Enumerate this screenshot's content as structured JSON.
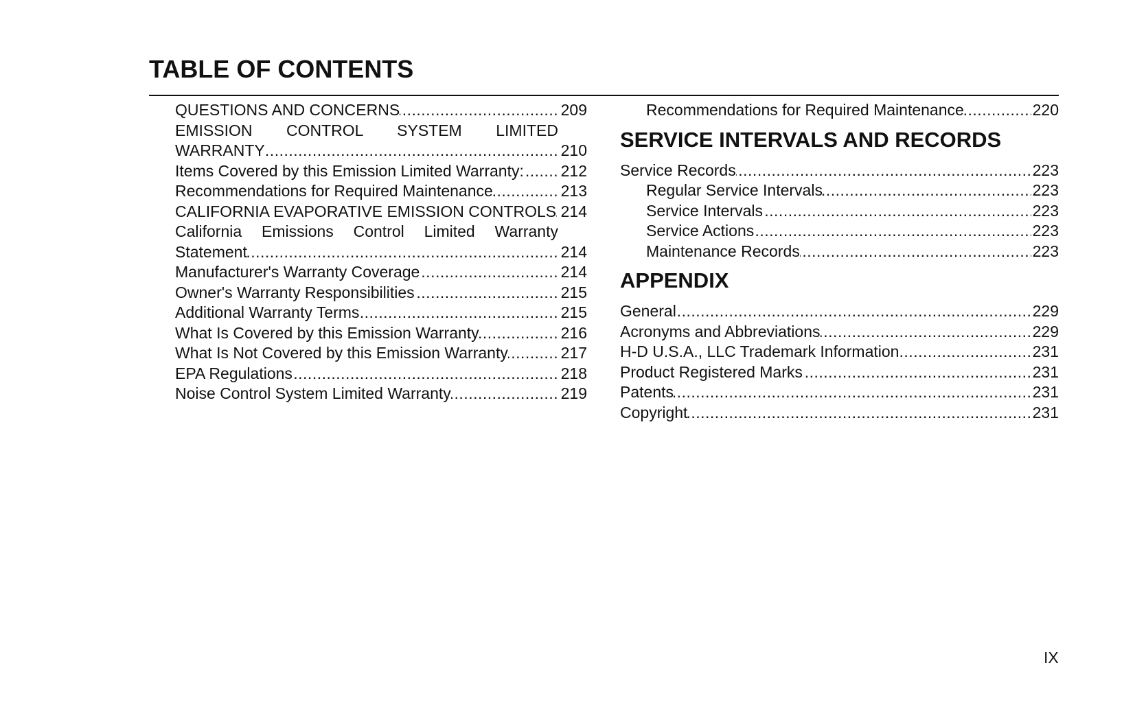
{
  "header": {
    "title": "TABLE OF CONTENTS"
  },
  "left": [
    {
      "text": "QUESTIONS AND CONCERNS",
      "page": "209",
      "level": 2
    },
    {
      "text": "EMISSION CONTROL SYSTEM LIMITED WARRANTY",
      "page": "210",
      "level": 2
    },
    {
      "text": "Items Covered by this Emission Limited Warranty:",
      "page": "212",
      "level": 2
    },
    {
      "text": "Recommendations for Required Maintenance",
      "page": "213",
      "level": 2
    },
    {
      "text": "CALIFORNIA EVAPORATIVE EMISSION CONTROLS",
      "page": "214",
      "level": 2
    },
    {
      "text": "California Emissions Control Limited Warranty Statement",
      "page": "214",
      "level": 2
    },
    {
      "text": "Manufacturer's Warranty Coverage",
      "page": "214",
      "level": 2
    },
    {
      "text": "Owner's Warranty Responsibilities",
      "page": "215",
      "level": 2
    },
    {
      "text": "Additional Warranty Terms",
      "page": "215",
      "level": 2
    },
    {
      "text": "What Is Covered by this Emission Warranty",
      "page": "216",
      "level": 2
    },
    {
      "text": "What Is Not Covered by this Emission Warranty",
      "page": "217",
      "level": 2
    },
    {
      "text": "EPA Regulations",
      "page": "218",
      "level": 2
    },
    {
      "text": "Noise Control System Limited Warranty",
      "page": "219",
      "level": 2
    }
  ],
  "right": [
    {
      "text": "Recommendations for Required Maintenance",
      "page": "220",
      "level": 2
    },
    {
      "heading": "SERVICE INTERVALS AND RECORDS"
    },
    {
      "text": "Service Records",
      "page": "223",
      "level": 1
    },
    {
      "text": "Regular Service Intervals",
      "page": "223",
      "level": 2
    },
    {
      "text": "Service Intervals",
      "page": "223",
      "level": 2
    },
    {
      "text": "Service Actions",
      "page": "223",
      "level": 2
    },
    {
      "text": "Maintenance Records",
      "page": "223",
      "level": 2
    },
    {
      "heading": "APPENDIX"
    },
    {
      "text": "General",
      "page": "229",
      "level": 1
    },
    {
      "text": "Acronyms and Abbreviations",
      "page": "229",
      "level": 1
    },
    {
      "text": "H-D U.S.A., LLC Trademark Information",
      "page": "231",
      "level": 1
    },
    {
      "text": "Product Registered Marks",
      "page": "231",
      "level": 1
    },
    {
      "text": "Patents",
      "page": "231",
      "level": 1
    },
    {
      "text": "Copyright",
      "page": "231",
      "level": 1
    }
  ],
  "footer": {
    "page_number": "IX"
  }
}
